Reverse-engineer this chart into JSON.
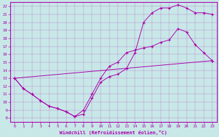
{
  "xlabel": "Windchill (Refroidissement éolien,°C)",
  "ylabel": "",
  "background_color": "#c8e8e8",
  "line_color": "#aa00aa",
  "xlim": [
    -0.5,
    23.5
  ],
  "ylim": [
    7.5,
    22.5
  ],
  "xticks": [
    0,
    1,
    2,
    3,
    4,
    5,
    6,
    7,
    8,
    9,
    10,
    11,
    12,
    13,
    14,
    15,
    16,
    17,
    18,
    19,
    20,
    21,
    22,
    23
  ],
  "yticks": [
    8,
    9,
    10,
    11,
    12,
    13,
    14,
    15,
    16,
    17,
    18,
    19,
    20,
    21,
    22
  ],
  "series": [
    {
      "x": [
        0,
        1,
        2,
        3,
        4,
        5,
        6,
        7,
        8,
        9,
        10,
        11,
        12,
        13,
        14,
        15,
        16,
        17,
        18,
        19,
        20,
        21,
        22,
        23
      ],
      "y": [
        13,
        11.7,
        11,
        10.2,
        9.5,
        9.2,
        8.8,
        8.2,
        8.5,
        10.5,
        12.5,
        13.2,
        13.5,
        14.2,
        16.2,
        20.0,
        21.2,
        21.8,
        21.8,
        22.2,
        21.8,
        21.2,
        21.2,
        21.0
      ]
    },
    {
      "x": [
        0,
        1,
        2,
        3,
        4,
        5,
        6,
        7,
        8,
        9,
        10,
        11,
        12,
        13,
        14,
        15,
        16,
        17,
        18,
        19,
        20,
        21,
        22,
        23
      ],
      "y": [
        13,
        11.7,
        11,
        10.2,
        9.5,
        9.2,
        8.8,
        8.2,
        9.0,
        11.0,
        13.0,
        14.5,
        15.0,
        16.2,
        16.5,
        16.8,
        17.0,
        17.5,
        17.8,
        19.2,
        18.8,
        17.2,
        16.2,
        15.2
      ]
    },
    {
      "x": [
        0,
        23
      ],
      "y": [
        13,
        15.2
      ]
    }
  ]
}
